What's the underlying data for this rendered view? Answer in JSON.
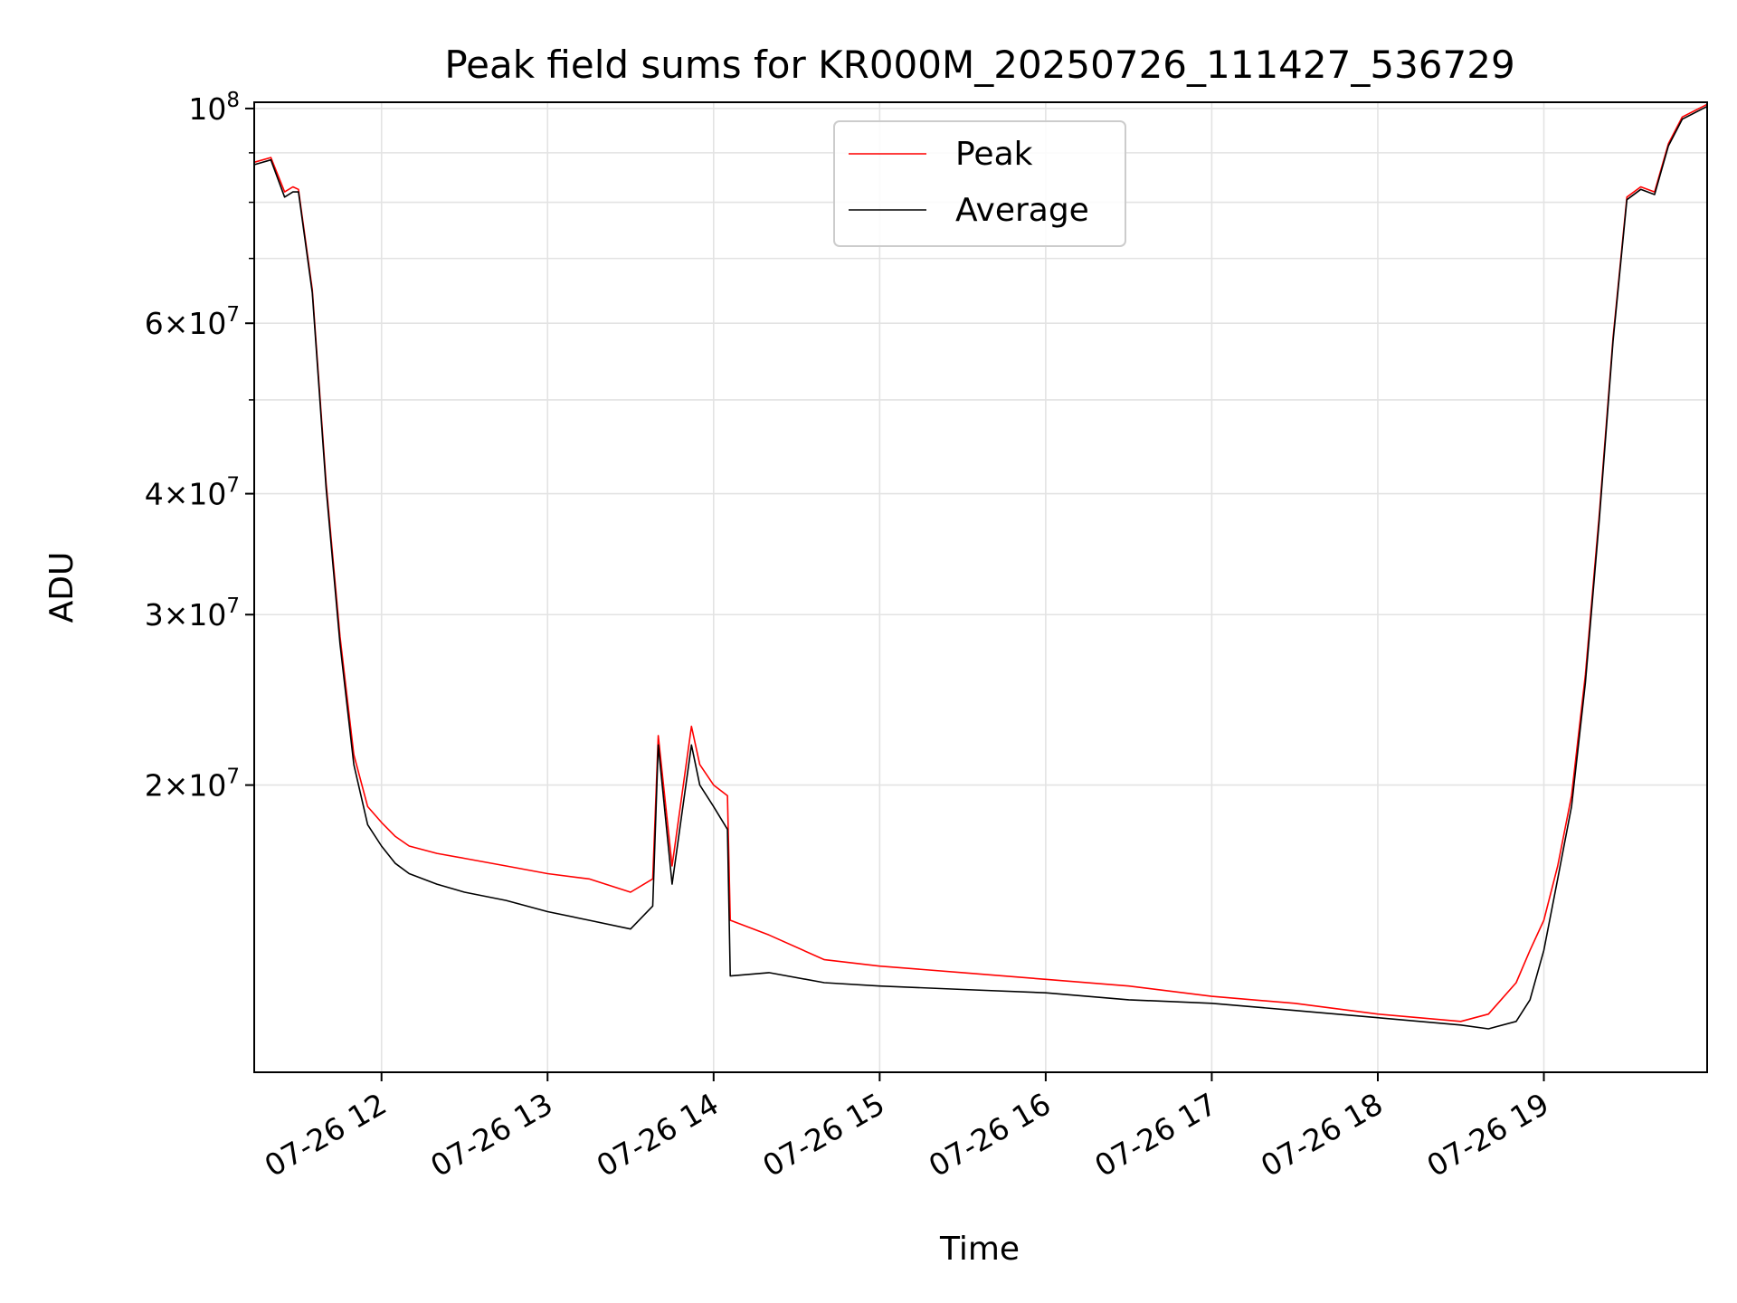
{
  "chart_data": {
    "type": "line",
    "title": "Peak field sums for KR000M_20250726_111427_536729",
    "xlabel": "Time",
    "ylabel": "ADU",
    "yscale": "log",
    "grid": true,
    "legend_position": "upper center",
    "xlim": [
      "2025-07-26 11:14",
      "2025-07-26 19:59"
    ],
    "ylim": [
      10100000,
      101500000
    ],
    "x_ticks": [
      "07-26 12",
      "07-26 13",
      "07-26 14",
      "07-26 15",
      "07-26 16",
      "07-26 17",
      "07-26 18",
      "07-26 19"
    ],
    "x_tick_times": [
      "2025-07-26 12:00",
      "2025-07-26 13:00",
      "2025-07-26 14:00",
      "2025-07-26 15:00",
      "2025-07-26 16:00",
      "2025-07-26 17:00",
      "2025-07-26 18:00",
      "2025-07-26 19:00"
    ],
    "y_major_ticks": [
      {
        "value": 20000000,
        "mantissa": "2",
        "exp": "7"
      },
      {
        "value": 30000000,
        "mantissa": "3",
        "exp": "7"
      },
      {
        "value": 40000000,
        "mantissa": "4",
        "exp": "7"
      },
      {
        "value": 60000000,
        "mantissa": "6",
        "exp": "7"
      },
      {
        "value": 100000000,
        "mantissa": "",
        "exp": "8"
      }
    ],
    "y_minor_ticks": [
      50000000,
      70000000,
      80000000,
      90000000
    ],
    "series": [
      {
        "name": "Peak",
        "color": "#ff0000",
        "x": [
          "2025-07-26 11:14",
          "2025-07-26 11:20",
          "2025-07-26 11:25",
          "2025-07-26 11:28",
          "2025-07-26 11:30",
          "2025-07-26 11:35",
          "2025-07-26 11:40",
          "2025-07-26 11:45",
          "2025-07-26 11:50",
          "2025-07-26 11:55",
          "2025-07-26 12:00",
          "2025-07-26 12:05",
          "2025-07-26 12:10",
          "2025-07-26 12:20",
          "2025-07-26 12:30",
          "2025-07-26 12:45",
          "2025-07-26 13:00",
          "2025-07-26 13:15",
          "2025-07-26 13:30",
          "2025-07-26 13:38",
          "2025-07-26 13:40",
          "2025-07-26 13:45",
          "2025-07-26 13:52",
          "2025-07-26 13:55",
          "2025-07-26 14:00",
          "2025-07-26 14:05",
          "2025-07-26 14:06",
          "2025-07-26 14:20",
          "2025-07-26 14:40",
          "2025-07-26 15:00",
          "2025-07-26 15:30",
          "2025-07-26 16:00",
          "2025-07-26 16:30",
          "2025-07-26 17:00",
          "2025-07-26 17:30",
          "2025-07-26 18:00",
          "2025-07-26 18:30",
          "2025-07-26 18:40",
          "2025-07-26 18:50",
          "2025-07-26 18:55",
          "2025-07-26 19:00",
          "2025-07-26 19:05",
          "2025-07-26 19:10",
          "2025-07-26 19:15",
          "2025-07-26 19:20",
          "2025-07-26 19:25",
          "2025-07-26 19:30",
          "2025-07-26 19:35",
          "2025-07-26 19:40",
          "2025-07-26 19:45",
          "2025-07-26 19:50",
          "2025-07-26 19:59"
        ],
        "y": [
          88000000,
          89000000,
          82000000,
          83000000,
          82500000,
          65000000,
          41000000,
          28500000,
          21500000,
          19000000,
          18300000,
          17700000,
          17300000,
          17000000,
          16800000,
          16500000,
          16200000,
          16000000,
          15500000,
          16000000,
          22500000,
          16500000,
          23000000,
          21000000,
          20000000,
          19500000,
          14500000,
          14000000,
          13200000,
          13000000,
          12800000,
          12600000,
          12400000,
          12100000,
          11900000,
          11600000,
          11400000,
          11600000,
          12500000,
          13500000,
          14500000,
          16500000,
          19500000,
          26000000,
          38000000,
          58000000,
          81000000,
          83000000,
          82000000,
          92000000,
          98000000,
          101000000
        ]
      },
      {
        "name": "Average",
        "color": "#000000",
        "x": [
          "2025-07-26 11:14",
          "2025-07-26 11:20",
          "2025-07-26 11:25",
          "2025-07-26 11:28",
          "2025-07-26 11:30",
          "2025-07-26 11:35",
          "2025-07-26 11:40",
          "2025-07-26 11:45",
          "2025-07-26 11:50",
          "2025-07-26 11:55",
          "2025-07-26 12:00",
          "2025-07-26 12:05",
          "2025-07-26 12:10",
          "2025-07-26 12:20",
          "2025-07-26 12:30",
          "2025-07-26 12:45",
          "2025-07-26 13:00",
          "2025-07-26 13:15",
          "2025-07-26 13:30",
          "2025-07-26 13:38",
          "2025-07-26 13:40",
          "2025-07-26 13:45",
          "2025-07-26 13:52",
          "2025-07-26 13:55",
          "2025-07-26 14:00",
          "2025-07-26 14:05",
          "2025-07-26 14:06",
          "2025-07-26 14:20",
          "2025-07-26 14:40",
          "2025-07-26 15:00",
          "2025-07-26 15:30",
          "2025-07-26 16:00",
          "2025-07-26 16:30",
          "2025-07-26 17:00",
          "2025-07-26 17:30",
          "2025-07-26 18:00",
          "2025-07-26 18:30",
          "2025-07-26 18:40",
          "2025-07-26 18:50",
          "2025-07-26 18:55",
          "2025-07-26 19:00",
          "2025-07-26 19:05",
          "2025-07-26 19:10",
          "2025-07-26 19:15",
          "2025-07-26 19:20",
          "2025-07-26 19:25",
          "2025-07-26 19:30",
          "2025-07-26 19:35",
          "2025-07-26 19:40",
          "2025-07-26 19:45",
          "2025-07-26 19:50",
          "2025-07-26 19:59"
        ],
        "y": [
          87500000,
          88500000,
          81000000,
          82000000,
          82000000,
          64500000,
          40500000,
          28000000,
          21000000,
          18200000,
          17300000,
          16600000,
          16200000,
          15800000,
          15500000,
          15200000,
          14800000,
          14500000,
          14200000,
          15000000,
          22000000,
          15800000,
          22000000,
          20000000,
          19000000,
          18000000,
          12700000,
          12800000,
          12500000,
          12400000,
          12300000,
          12200000,
          12000000,
          11900000,
          11700000,
          11500000,
          11300000,
          11200000,
          11400000,
          12000000,
          13500000,
          16000000,
          19000000,
          25500000,
          37500000,
          57500000,
          80500000,
          82500000,
          81500000,
          91500000,
          97500000,
          100500000
        ]
      }
    ]
  }
}
